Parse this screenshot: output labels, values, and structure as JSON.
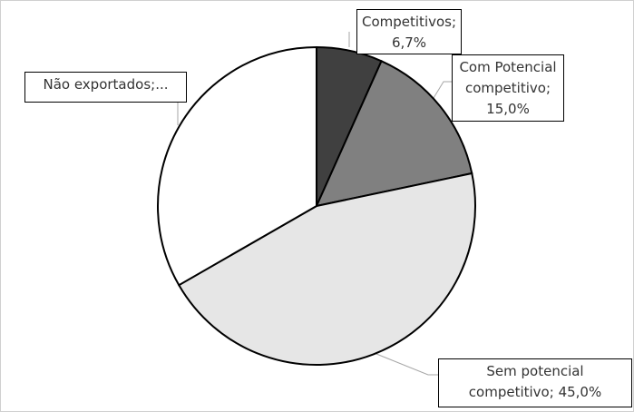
{
  "chart_data": {
    "type": "pie",
    "categories": [
      "Competitivos;",
      "Com Potencial competitivo;",
      "Sem potencial competitivo;",
      "Não exportados;..."
    ],
    "values": [
      6.7,
      15.0,
      45.0,
      33.3
    ],
    "value_labels": [
      "6,7%",
      "15,0%",
      "45,0%",
      null
    ],
    "colors": [
      "#404040",
      "#808080",
      "#e6e6e6",
      "#ffffff"
    ]
  }
}
